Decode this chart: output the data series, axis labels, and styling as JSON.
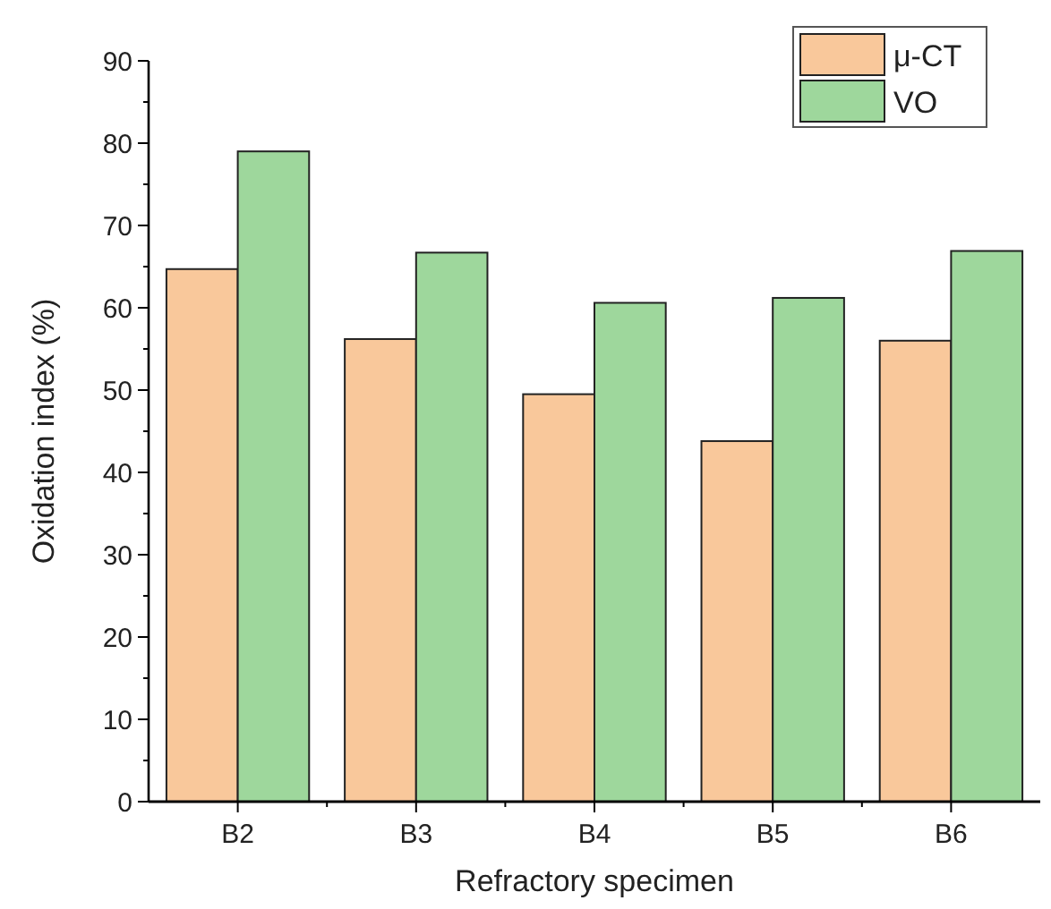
{
  "chart_data": {
    "type": "bar",
    "xlabel": "Refractory specimen",
    "ylabel": "Oxidation index (%)",
    "categories": [
      "B2",
      "B3",
      "B4",
      "B5",
      "B6"
    ],
    "series": [
      {
        "name": "μ-CT",
        "color": "#f9c89b",
        "values": [
          64.7,
          56.2,
          49.5,
          43.8,
          56.0
        ]
      },
      {
        "name": "VO",
        "color": "#9ed79c",
        "values": [
          79.0,
          66.7,
          60.6,
          61.2,
          66.9
        ]
      }
    ],
    "ylim": [
      0,
      90
    ],
    "yticks": [
      0,
      10,
      20,
      30,
      40,
      50,
      60,
      70,
      80,
      90
    ],
    "grid": false,
    "legend": "top right"
  }
}
